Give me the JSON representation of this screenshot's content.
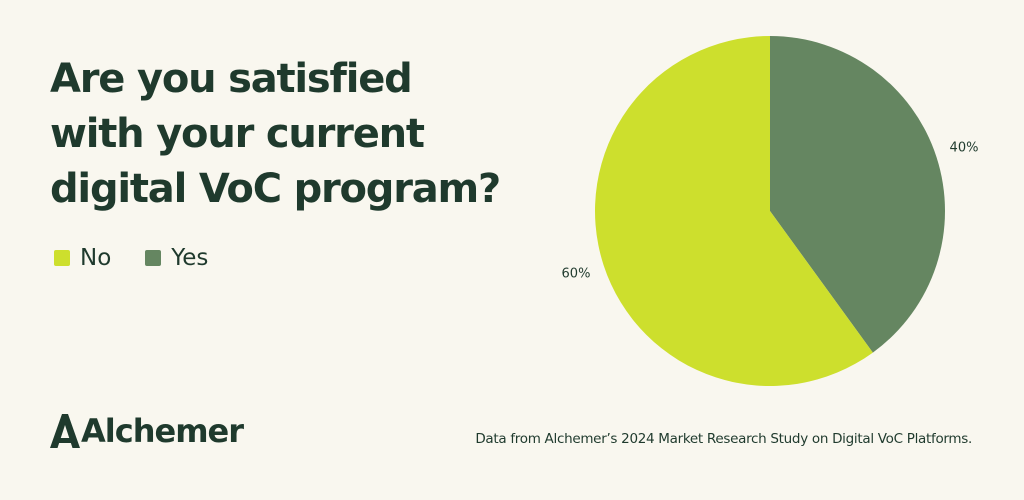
{
  "colors": {
    "background": "#f9f7ef",
    "text": "#1f3a2d",
    "no": "#cddf2d",
    "yes": "#658661"
  },
  "chart_data": {
    "type": "pie",
    "title_lines": [
      "Are you satisfied",
      "with your current",
      "digital VoC program?"
    ],
    "slices": [
      {
        "name": "No",
        "value": 60,
        "label": "60%",
        "color": "#cddf2d"
      },
      {
        "name": "Yes",
        "value": 40,
        "label": "40%",
        "color": "#658661"
      }
    ],
    "legend": {
      "placement": "left",
      "entries": [
        "No",
        "Yes"
      ]
    }
  },
  "branding": {
    "logo_text": "Alchemer"
  },
  "source": "Data from Alchemer’s 2024 Market Research Study on Digital VoC Platforms."
}
